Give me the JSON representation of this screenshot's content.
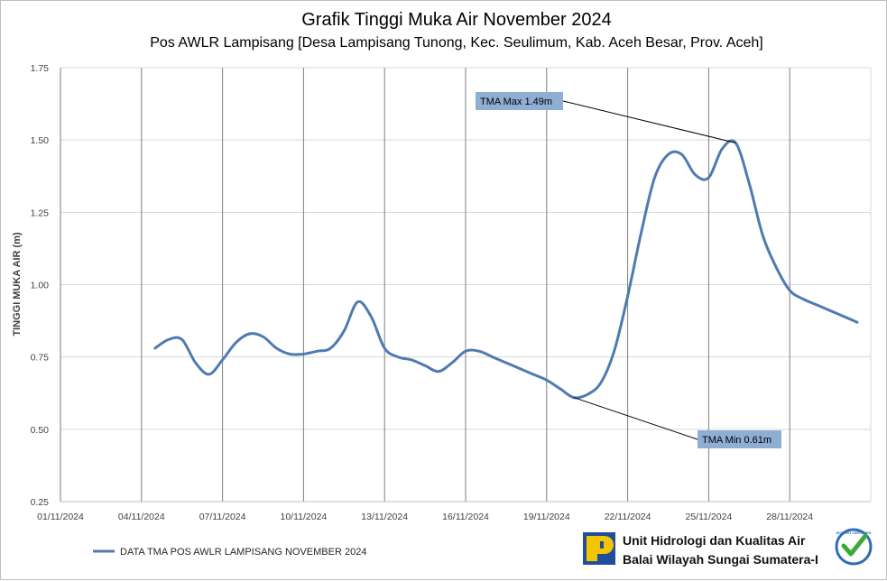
{
  "chart_data": {
    "type": "line",
    "title": "Grafik Tinggi Muka Air November 2024",
    "subtitle": "Pos AWLR Lampisang [Desa Lampisang Tunong, Kec. Seulimum, Kab. Aceh Besar, Prov. Aceh]",
    "ylabel": "TINGGI MUKA AIR (m)",
    "xlabel": "",
    "ylim": [
      0.25,
      1.75
    ],
    "xlim": [
      1,
      31
    ],
    "y_ticks": [
      "0.25",
      "0.50",
      "0.75",
      "1.00",
      "1.25",
      "1.50",
      "1.75"
    ],
    "x_ticks": [
      {
        "day": 1,
        "label": "01/11/2024"
      },
      {
        "day": 4,
        "label": "04/11/2024"
      },
      {
        "day": 7,
        "label": "07/11/2024"
      },
      {
        "day": 10,
        "label": "10/11/2024"
      },
      {
        "day": 13,
        "label": "13/11/2024"
      },
      {
        "day": 16,
        "label": "16/11/2024"
      },
      {
        "day": 19,
        "label": "19/11/2024"
      },
      {
        "day": 22,
        "label": "22/11/2024"
      },
      {
        "day": 25,
        "label": "25/11/2024"
      },
      {
        "day": 28,
        "label": "28/11/2024"
      }
    ],
    "grid": true,
    "line_color": "#4f7bb0",
    "series": [
      {
        "name": "DATA TMA POS AWLR LAMPISANG NOVEMBER 2024",
        "x": [
          4.5,
          5.0,
          5.5,
          6.0,
          6.5,
          7.0,
          7.5,
          8.0,
          8.5,
          9.0,
          9.5,
          10.0,
          10.5,
          11.0,
          11.5,
          12.0,
          12.5,
          13.0,
          13.5,
          14.0,
          14.5,
          15.0,
          15.5,
          16.0,
          16.5,
          17.0,
          17.5,
          18.0,
          18.5,
          19.0,
          19.5,
          20.0,
          20.5,
          21.0,
          21.5,
          22.0,
          22.5,
          23.0,
          23.5,
          24.0,
          24.5,
          25.0,
          25.5,
          26.0,
          26.5,
          27.0,
          27.5,
          28.0,
          28.5,
          29.0,
          29.5,
          30.0,
          30.5
        ],
        "values": [
          0.78,
          0.81,
          0.81,
          0.73,
          0.69,
          0.74,
          0.8,
          0.83,
          0.82,
          0.78,
          0.76,
          0.76,
          0.77,
          0.78,
          0.84,
          0.94,
          0.89,
          0.78,
          0.75,
          0.74,
          0.72,
          0.7,
          0.73,
          0.77,
          0.77,
          0.75,
          0.73,
          0.71,
          0.69,
          0.67,
          0.64,
          0.61,
          0.62,
          0.66,
          0.77,
          0.96,
          1.18,
          1.37,
          1.45,
          1.45,
          1.38,
          1.37,
          1.47,
          1.49,
          1.35,
          1.17,
          1.06,
          0.98,
          0.95,
          0.93,
          0.91,
          0.89,
          0.87
        ]
      }
    ],
    "annotations": [
      {
        "text": "TMA Max 1.49m",
        "point_day": 26.0,
        "point_value": 1.49,
        "label_side": "upper-left"
      },
      {
        "text": "TMA Min 0.61m",
        "point_day": 20.0,
        "point_value": 0.61,
        "label_side": "lower-right"
      }
    ],
    "legend": {
      "position": "bottom-left",
      "label": "DATA TMA POS AWLR LAMPISANG NOVEMBER 2024"
    }
  },
  "footer": {
    "org_line1": "Unit Hidrologi dan Kualitas Air",
    "org_line2": "Balai Wilayah Sungai Sumatera-I",
    "logo_icon": "pu-logo-icon",
    "badge_icon": "certified-check-icon",
    "badge_text": "ISO 9001 CERTIFIED",
    "colors": {
      "logo_yellow": "#f5c400",
      "logo_blue": "#1f4e9c",
      "badge_green": "#3aaa35",
      "badge_blue": "#2f6db5"
    }
  }
}
